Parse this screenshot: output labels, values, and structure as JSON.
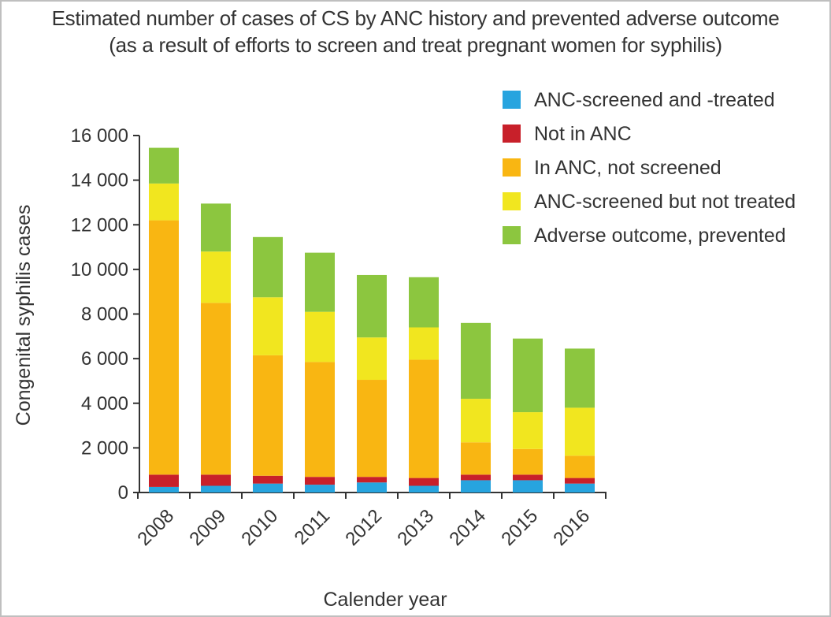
{
  "chart_data": {
    "type": "bar",
    "stacked": true,
    "title": "Estimated number of cases of CS by ANC history and prevented adverse outcome",
    "subtitle": "(as a result of efforts to screen and treat pregnant women for syphilis)",
    "xlabel": "Calender year",
    "ylabel": "Congenital syphilis cases",
    "ylim": [
      0,
      16000
    ],
    "yticks": [
      0,
      2000,
      4000,
      6000,
      8000,
      10000,
      12000,
      14000,
      16000
    ],
    "ytick_labels": [
      "0",
      "2 000",
      "4 000",
      "6 000",
      "8 000",
      "10 000",
      "12 000",
      "14 000",
      "16 000"
    ],
    "categories": [
      "2008",
      "2009",
      "2010",
      "2011",
      "2012",
      "2013",
      "2014",
      "2015",
      "2016"
    ],
    "grid": false,
    "legend_position": "top-right",
    "series": [
      {
        "name": "ANC-screened and -treated",
        "color": "#27a4df",
        "values": [
          250,
          300,
          400,
          350,
          450,
          300,
          550,
          550,
          400
        ]
      },
      {
        "name": "Not in ANC",
        "color": "#c8202a",
        "values": [
          550,
          500,
          350,
          350,
          250,
          350,
          250,
          250,
          250
        ]
      },
      {
        "name": "In ANC, not screened",
        "color": "#f9b612",
        "values": [
          11400,
          7700,
          5400,
          5150,
          4350,
          5300,
          1450,
          1150,
          1000
        ]
      },
      {
        "name": "ANC-screened but not treated",
        "color": "#f1e61f",
        "values": [
          1650,
          2300,
          2600,
          2250,
          1900,
          1450,
          1950,
          1650,
          2150
        ]
      },
      {
        "name": "Adverse outcome, prevented",
        "color": "#8cc63f",
        "values": [
          1600,
          2150,
          2700,
          2650,
          2800,
          2250,
          3400,
          3300,
          2650
        ]
      }
    ]
  }
}
